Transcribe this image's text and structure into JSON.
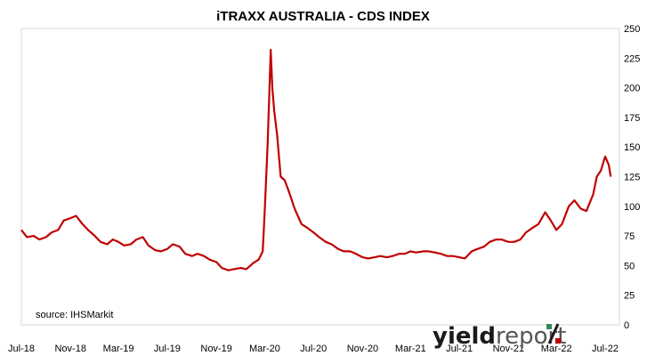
{
  "chart_data": {
    "type": "line",
    "title": "iTRAXX AUSTRALIA - CDS INDEX",
    "xlabel": "",
    "ylabel": "",
    "ylim": [
      0,
      250
    ],
    "yticks": [
      0,
      25,
      50,
      75,
      100,
      125,
      150,
      175,
      200,
      225,
      250
    ],
    "y_axis_side": "right",
    "grid": false,
    "legend": "none",
    "x_tick_labels": [
      "Jul-18",
      "Nov-18",
      "Mar-19",
      "Jul-19",
      "Nov-19",
      "Mar-20",
      "Jul-20",
      "Nov-20",
      "Mar-21",
      "Jul-21",
      "Nov-21",
      "Mar-22",
      "Jul-22"
    ],
    "line_color": "#c00000",
    "series": [
      {
        "x": [
          "2018-07-01",
          "2018-07-15",
          "2018-08-01",
          "2018-08-15",
          "2018-09-01",
          "2018-09-15",
          "2018-10-01",
          "2018-10-15",
          "2018-11-01",
          "2018-11-15",
          "2018-12-01",
          "2018-12-15",
          "2019-01-01",
          "2019-01-15",
          "2019-02-01",
          "2019-02-15",
          "2019-03-01",
          "2019-03-15",
          "2019-04-01",
          "2019-04-15",
          "2019-05-01",
          "2019-05-15",
          "2019-06-01",
          "2019-06-15",
          "2019-07-01",
          "2019-07-15",
          "2019-08-01",
          "2019-08-15",
          "2019-09-01",
          "2019-09-15",
          "2019-10-01",
          "2019-10-15",
          "2019-11-01",
          "2019-11-15",
          "2019-12-01",
          "2019-12-15",
          "2020-01-01",
          "2020-01-15",
          "2020-02-01",
          "2020-02-15",
          "2020-02-25",
          "2020-03-01",
          "2020-03-08",
          "2020-03-12",
          "2020-03-16",
          "2020-03-20",
          "2020-03-25",
          "2020-04-01",
          "2020-04-10",
          "2020-04-20",
          "2020-05-01",
          "2020-05-15",
          "2020-06-01",
          "2020-06-15",
          "2020-07-01",
          "2020-07-15",
          "2020-08-01",
          "2020-08-15",
          "2020-09-01",
          "2020-09-15",
          "2020-10-01",
          "2020-10-15",
          "2020-11-01",
          "2020-11-15",
          "2020-12-01",
          "2020-12-15",
          "2021-01-01",
          "2021-01-15",
          "2021-02-01",
          "2021-02-15",
          "2021-03-01",
          "2021-03-15",
          "2021-04-01",
          "2021-04-15",
          "2021-05-01",
          "2021-05-15",
          "2021-06-01",
          "2021-06-15",
          "2021-07-01",
          "2021-07-15",
          "2021-08-01",
          "2021-08-15",
          "2021-09-01",
          "2021-09-15",
          "2021-10-01",
          "2021-10-15",
          "2021-11-01",
          "2021-11-15",
          "2021-12-01",
          "2021-12-15",
          "2022-01-01",
          "2022-01-15",
          "2022-02-01",
          "2022-02-15",
          "2022-03-01",
          "2022-03-15",
          "2022-04-01",
          "2022-04-15",
          "2022-05-01",
          "2022-05-15",
          "2022-06-01",
          "2022-06-10",
          "2022-06-20",
          "2022-07-01",
          "2022-07-10",
          "2022-07-15"
        ],
        "values": [
          80,
          74,
          75,
          72,
          74,
          78,
          80,
          88,
          90,
          92,
          85,
          80,
          75,
          70,
          68,
          72,
          70,
          67,
          68,
          72,
          74,
          67,
          63,
          62,
          64,
          68,
          66,
          60,
          58,
          60,
          58,
          55,
          53,
          48,
          46,
          47,
          48,
          47,
          52,
          55,
          62,
          95,
          150,
          190,
          232,
          200,
          180,
          160,
          125,
          122,
          112,
          98,
          85,
          82,
          78,
          74,
          70,
          68,
          64,
          62,
          62,
          60,
          57,
          56,
          57,
          58,
          57,
          58,
          60,
          60,
          62,
          61,
          62,
          62,
          61,
          60,
          58,
          58,
          57,
          56,
          62,
          64,
          66,
          70,
          72,
          72,
          70,
          70,
          72,
          78,
          82,
          85,
          95,
          88,
          80,
          85,
          100,
          105,
          98,
          96,
          110,
          125,
          130,
          142,
          135,
          125
        ]
      }
    ],
    "source": "source: IHSMarkit"
  },
  "logo": {
    "text_bold": "yield",
    "text_regular": "report",
    "percent": "%"
  }
}
